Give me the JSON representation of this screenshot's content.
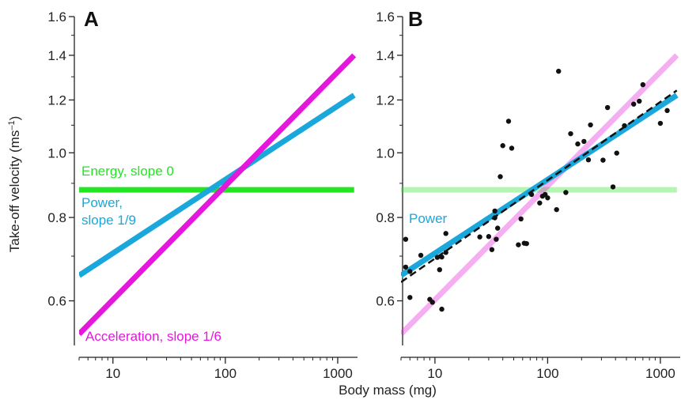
{
  "x_axis_title": "Body mass (mg)",
  "y_axis_title_main": "Take-off velocity (ms",
  "y_axis_title_sup": "–1",
  "y_axis_title_end": ")",
  "colors": {
    "energy": "#22e622",
    "power": "#1aa8dc",
    "acceleration": "#e617dc",
    "fit": "#111111",
    "points": "#111111"
  },
  "chart_data": [
    {
      "panel": "A",
      "type": "line",
      "x_scale": "log",
      "y_scale": "log",
      "xlim": [
        5,
        1500
      ],
      "ylim": [
        0.52,
        1.6
      ],
      "xticks": [
        10,
        100,
        1000
      ],
      "xtick_labels": [
        "10",
        "100",
        "1000"
      ],
      "yticks": [
        0.6,
        0.8,
        1.0,
        1.2,
        1.4,
        1.6
      ],
      "ytick_labels": [
        "0.6",
        "0.8",
        "1.0",
        "1.2",
        "1.4",
        "1.6"
      ],
      "series": [
        {
          "key": "energy",
          "x": [
            5,
            1400
          ],
          "y": [
            0.88,
            0.88
          ]
        },
        {
          "key": "power",
          "x": [
            5,
            1400
          ],
          "y": [
            0.655,
            1.22
          ]
        },
        {
          "key": "acceleration",
          "x": [
            5,
            1400
          ],
          "y": [
            0.535,
            1.4
          ]
        }
      ],
      "annotations": [
        {
          "key": "energy",
          "lines": [
            "Energy, slope 0"
          ]
        },
        {
          "key": "power",
          "lines": [
            "Power,",
            "slope 1/9"
          ]
        },
        {
          "key": "acceleration",
          "lines": [
            "Acceleration, slope 1/6"
          ]
        }
      ]
    },
    {
      "panel": "B",
      "type": "scatter",
      "x_scale": "log",
      "y_scale": "log",
      "xlim": [
        5,
        1500
      ],
      "ylim": [
        0.52,
        1.6
      ],
      "xticks": [
        10,
        100,
        1000
      ],
      "xtick_labels": [
        "10",
        "100",
        "1000"
      ],
      "yticks": [
        0.6,
        0.8,
        1.0,
        1.2,
        1.4,
        1.6
      ],
      "ytick_labels": [
        "0.6",
        "0.8",
        "1.0",
        "1.2",
        "1.4",
        "1.6"
      ],
      "lines": [
        {
          "key": "energy",
          "x": [
            5,
            1400
          ],
          "y": [
            0.88,
            0.88
          ],
          "faded": true
        },
        {
          "key": "acceleration",
          "x": [
            5,
            1400
          ],
          "y": [
            0.535,
            1.4
          ],
          "faded": true
        },
        {
          "key": "power",
          "x": [
            5,
            1400
          ],
          "y": [
            0.655,
            1.22
          ],
          "faded": false
        },
        {
          "key": "fit",
          "x": [
            5,
            1400
          ],
          "y": [
            0.64,
            1.24
          ],
          "dashed": true
        }
      ],
      "annotations": [
        {
          "key": "power",
          "lines": [
            "Power"
          ]
        }
      ],
      "points": [
        [
          5.5,
          0.742
        ],
        [
          5.5,
          0.674
        ],
        [
          6.0,
          0.664
        ],
        [
          6.0,
          0.607
        ],
        [
          7.5,
          0.702
        ],
        [
          9.0,
          0.603
        ],
        [
          9.5,
          0.597
        ],
        [
          10.5,
          0.697
        ],
        [
          11.0,
          0.668
        ],
        [
          11.5,
          0.583
        ],
        [
          11.5,
          0.698
        ],
        [
          12.5,
          0.709
        ],
        [
          12.5,
          0.757
        ],
        [
          25,
          0.748
        ],
        [
          30,
          0.749
        ],
        [
          32,
          0.716
        ],
        [
          34,
          0.799
        ],
        [
          34,
          0.818
        ],
        [
          35,
          0.742
        ],
        [
          36,
          0.771
        ],
        [
          38,
          0.921
        ],
        [
          40,
          1.025
        ],
        [
          45,
          1.115
        ],
        [
          48,
          1.016
        ],
        [
          55,
          0.728
        ],
        [
          58,
          0.796
        ],
        [
          62,
          0.732
        ],
        [
          65,
          0.731
        ],
        [
          72,
          0.866
        ],
        [
          85,
          0.841
        ],
        [
          90,
          0.861
        ],
        [
          95,
          0.866
        ],
        [
          100,
          0.856
        ],
        [
          120,
          0.822
        ],
        [
          125,
          1.325
        ],
        [
          145,
          0.872
        ],
        [
          160,
          1.068
        ],
        [
          185,
          1.031
        ],
        [
          210,
          1.04
        ],
        [
          230,
          0.976
        ],
        [
          240,
          1.101
        ],
        [
          310,
          0.975
        ],
        [
          340,
          1.169
        ],
        [
          380,
          0.889
        ],
        [
          410,
          0.999
        ],
        [
          480,
          1.098
        ],
        [
          580,
          1.183
        ],
        [
          650,
          1.195
        ],
        [
          700,
          1.265
        ],
        [
          1000,
          1.107
        ],
        [
          1150,
          1.157
        ]
      ]
    }
  ]
}
